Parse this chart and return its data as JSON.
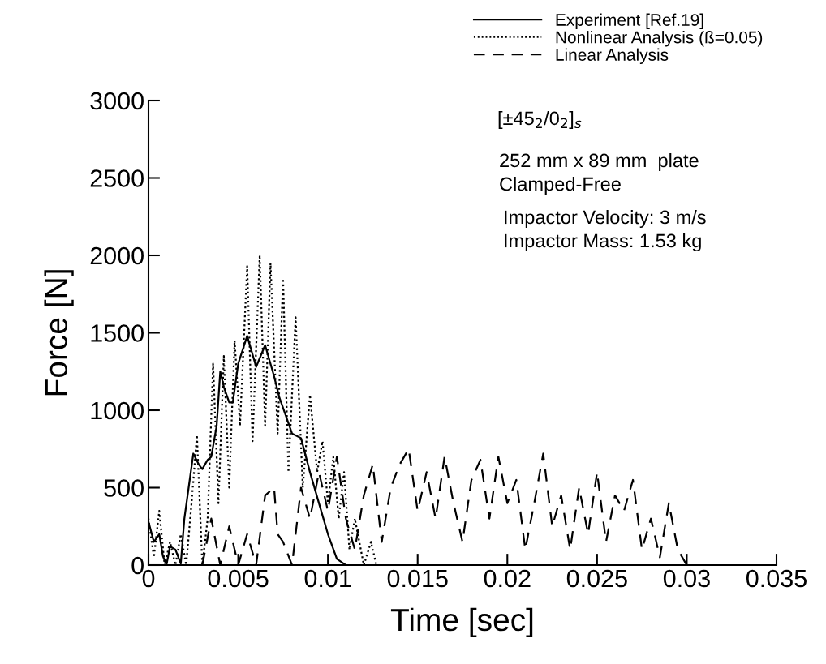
{
  "chart_data": {
    "type": "line",
    "xlabel": "Time [sec]",
    "ylabel": "Force [N]",
    "xlim": [
      0,
      0.035
    ],
    "ylim": [
      0,
      3000
    ],
    "xticks": [
      0,
      0.005,
      0.01,
      0.015,
      0.02,
      0.025,
      0.03,
      0.035
    ],
    "yticks": [
      0,
      500,
      1000,
      1500,
      2000,
      2500,
      3000
    ],
    "grid": false,
    "legend": "top right",
    "marker": "none",
    "annotations": [
      "[±45$_{2}$/0$_{2}$]$_{s}$",
      "252 mm x 89 mm  plate",
      "Clamped-Free",
      "Impactor Velocity: 3 m/s",
      "Impactor Mass: 1.53 kg"
    ],
    "series": [
      {
        "name": "Experiment [Ref.19]",
        "color": "#000000",
        "line_style": "solid",
        "x": [
          0,
          0.0003,
          0.0006,
          0.0008,
          0.001,
          0.0012,
          0.0015,
          0.0018,
          0.002,
          0.0025,
          0.0028,
          0.003,
          0.0033,
          0.0035,
          0.0038,
          0.004,
          0.0042,
          0.0045,
          0.0047,
          0.005,
          0.0055,
          0.006,
          0.0065,
          0.007,
          0.0073,
          0.0077,
          0.008,
          0.0085,
          0.009,
          0.0095,
          0.01,
          0.0105,
          0.011
        ],
        "values": [
          280,
          150,
          200,
          60,
          0,
          120,
          100,
          10,
          300,
          720,
          650,
          620,
          680,
          700,
          900,
          1250,
          1150,
          1050,
          1050,
          1300,
          1480,
          1280,
          1420,
          1220,
          1080,
          950,
          850,
          820,
          600,
          400,
          200,
          40,
          0
        ]
      },
      {
        "name": "Nonlinear Analysis (ß=0.05)",
        "color": "#000000",
        "line_style": "dotted",
        "x": [
          0,
          0.0003,
          0.0006,
          0.0009,
          0.0012,
          0.0015,
          0.0018,
          0.0021,
          0.0024,
          0.0027,
          0.003,
          0.0033,
          0.0036,
          0.0039,
          0.0042,
          0.0045,
          0.0048,
          0.0051,
          0.0055,
          0.0058,
          0.0062,
          0.0065,
          0.0068,
          0.0072,
          0.0075,
          0.0078,
          0.0082,
          0.0086,
          0.009,
          0.0094,
          0.0097,
          0.01,
          0.0103,
          0.0106,
          0.0109,
          0.0112,
          0.0115,
          0.012,
          0.0124,
          0.0127
        ],
        "values": [
          300,
          50,
          350,
          0,
          150,
          0,
          200,
          0,
          400,
          840,
          0,
          300,
          1300,
          400,
          1350,
          500,
          1450,
          900,
          1930,
          800,
          2000,
          900,
          1950,
          850,
          1850,
          600,
          1600,
          500,
          1100,
          600,
          800,
          400,
          700,
          300,
          600,
          100,
          300,
          0,
          150,
          0
        ]
      },
      {
        "name": "Linear Analysis",
        "color": "#000000",
        "line_style": "dashed",
        "x": [
          0.003,
          0.0035,
          0.004,
          0.0045,
          0.005,
          0.0055,
          0.006,
          0.0065,
          0.007,
          0.0072,
          0.0075,
          0.008,
          0.0085,
          0.009,
          0.0095,
          0.01,
          0.0105,
          0.011,
          0.0115,
          0.012,
          0.0125,
          0.013,
          0.0135,
          0.014,
          0.0145,
          0.015,
          0.0155,
          0.016,
          0.0165,
          0.017,
          0.0175,
          0.018,
          0.0185,
          0.019,
          0.0195,
          0.02,
          0.0205,
          0.021,
          0.0215,
          0.022,
          0.0225,
          0.023,
          0.0235,
          0.024,
          0.0245,
          0.025,
          0.0255,
          0.026,
          0.0265,
          0.027,
          0.0275,
          0.028,
          0.0285,
          0.029,
          0.0295,
          0.03
        ],
        "values": [
          0,
          300,
          0,
          250,
          0,
          200,
          0,
          450,
          500,
          200,
          150,
          0,
          500,
          300,
          600,
          350,
          700,
          300,
          100,
          450,
          650,
          150,
          500,
          650,
          750,
          350,
          600,
          300,
          700,
          400,
          150,
          550,
          680,
          300,
          700,
          400,
          550,
          100,
          400,
          720,
          250,
          450,
          100,
          500,
          200,
          600,
          150,
          450,
          350,
          550,
          100,
          300,
          50,
          400,
          100,
          0
        ]
      }
    ]
  }
}
